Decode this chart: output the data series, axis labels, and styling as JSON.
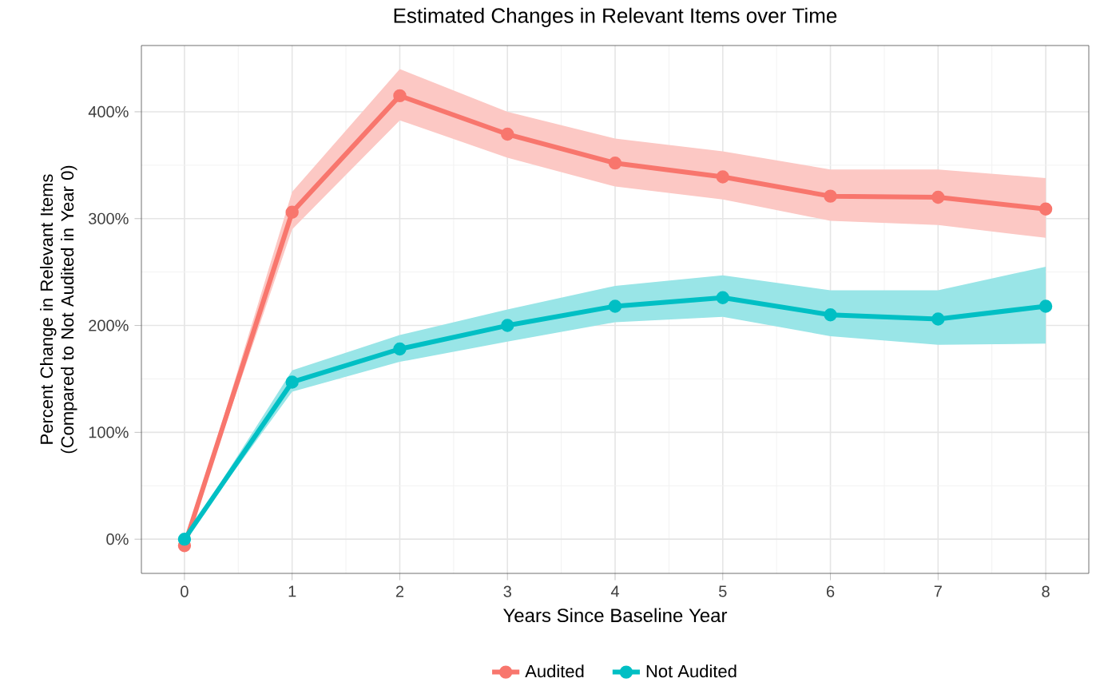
{
  "chart_data": {
    "type": "line",
    "title": "Estimated Changes in Relevant Items over Time",
    "xlabel": "Years Since Baseline Year",
    "ylabel": "Percent Change in Relevant Items (Compared to Not Audited in Year 0)",
    "x": [
      0,
      1,
      2,
      3,
      4,
      5,
      6,
      7,
      8
    ],
    "series": [
      {
        "name": "Audited",
        "color": "#f8766d",
        "values": [
          -6,
          306,
          415,
          379,
          352,
          339,
          321,
          320,
          309
        ],
        "lower": [
          -6,
          290,
          392,
          357,
          330,
          318,
          298,
          294,
          282
        ],
        "upper": [
          -6,
          325,
          440,
          400,
          375,
          363,
          346,
          346,
          338
        ]
      },
      {
        "name": "Not Audited",
        "color": "#00bfc4",
        "values": [
          0,
          147,
          178,
          200,
          218,
          226,
          210,
          206,
          218
        ],
        "lower": [
          0,
          138,
          166,
          185,
          203,
          208,
          190,
          182,
          183
        ],
        "upper": [
          0,
          158,
          191,
          215,
          237,
          247,
          233,
          233,
          255
        ]
      }
    ],
    "xlim": [
      -0.4,
      8.4
    ],
    "ylim": [
      -32,
      462
    ],
    "xticks": [
      0,
      1,
      2,
      3,
      4,
      5,
      6,
      7,
      8
    ],
    "yticks": [
      {
        "value": 0,
        "label": "0%"
      },
      {
        "value": 100,
        "label": "100%"
      },
      {
        "value": 200,
        "label": "200%"
      },
      {
        "value": 300,
        "label": "300%"
      },
      {
        "value": 400,
        "label": "400%"
      }
    ],
    "grid": true,
    "legend": "bottom",
    "marker": "circle",
    "line_style": "solid"
  }
}
